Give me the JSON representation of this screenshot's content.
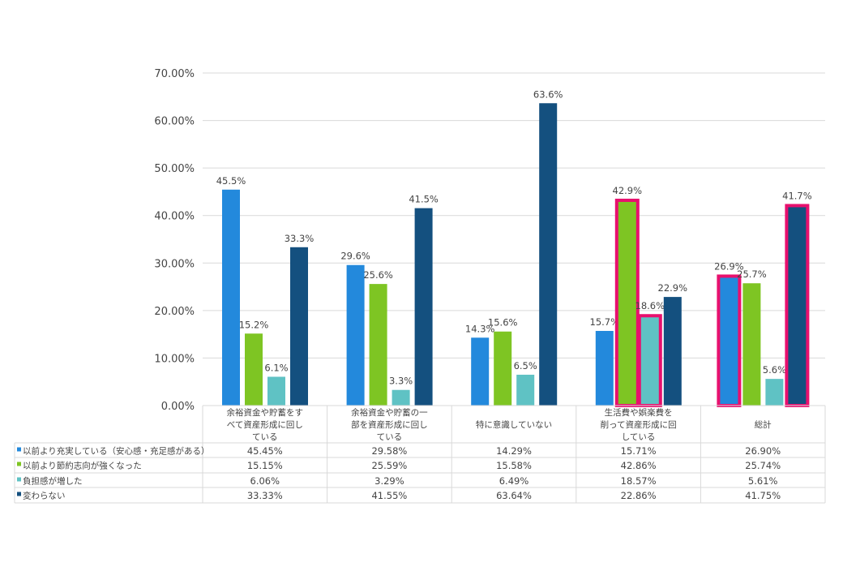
{
  "chart_data": {
    "type": "bar",
    "title": "",
    "xlabel": "",
    "ylabel": "",
    "ylim": [
      0,
      70
    ],
    "yticks": [
      "0.00%",
      "10.00%",
      "20.00%",
      "30.00%",
      "40.00%",
      "50.00%",
      "60.00%",
      "70.00%"
    ],
    "grid": true,
    "legend_placement": "data-table-left",
    "categories": [
      [
        "余裕資金や貯蓄をす",
        "べて資産形成に回し",
        "ている"
      ],
      [
        "余裕資金や貯蓄の一",
        "部を資産形成に回し",
        "ている"
      ],
      [
        "特に意識していない"
      ],
      [
        "生活費や娯楽費を",
        "削って資産形成に回",
        "している"
      ],
      [
        "総計"
      ]
    ],
    "series": [
      {
        "name": "以前より充実している（安心感・充足感がある）",
        "color": "#2389dc",
        "values": [
          45.45,
          29.58,
          14.29,
          15.71,
          26.9
        ],
        "labels": [
          "45.5%",
          "29.6%",
          "14.3%",
          "15.7%",
          "26.9%"
        ],
        "table": [
          "45.45%",
          "29.58%",
          "14.29%",
          "15.71%",
          "26.90%"
        ]
      },
      {
        "name": "以前より節約志向が強くなった",
        "color": "#7ec523",
        "values": [
          15.15,
          25.59,
          15.58,
          42.86,
          25.74
        ],
        "labels": [
          "15.2%",
          "25.6%",
          "15.6%",
          "42.9%",
          "25.7%"
        ],
        "table": [
          "15.15%",
          "25.59%",
          "15.58%",
          "42.86%",
          "25.74%"
        ]
      },
      {
        "name": "負担感が増した",
        "color": "#5fc2c4",
        "values": [
          6.06,
          3.29,
          6.49,
          18.57,
          5.61
        ],
        "labels": [
          "6.1%",
          "3.3%",
          "6.5%",
          "18.6%",
          "5.6%"
        ],
        "table": [
          "6.06%",
          "3.29%",
          "6.49%",
          "18.57%",
          "5.61%"
        ]
      },
      {
        "name": "変わらない",
        "color": "#14507f",
        "values": [
          33.33,
          41.55,
          63.64,
          22.86,
          41.75
        ],
        "labels": [
          "33.3%",
          "41.5%",
          "63.6%",
          "22.9%",
          "41.7%"
        ],
        "table": [
          "33.33%",
          "41.55%",
          "63.64%",
          "22.86%",
          "41.75%"
        ]
      }
    ],
    "highlighted": [
      [
        3,
        1
      ],
      [
        3,
        2
      ],
      [
        4,
        0
      ],
      [
        4,
        3
      ]
    ],
    "highlight_color": "#e8106e"
  }
}
